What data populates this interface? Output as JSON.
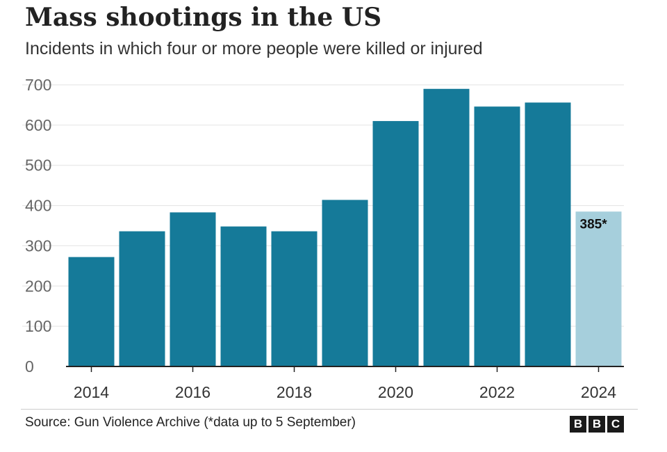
{
  "chart_data": {
    "type": "bar",
    "title": "Mass shootings in the US",
    "subtitle": "Incidents in which four or more people were killed or injured",
    "categories": [
      "2014",
      "2015",
      "2016",
      "2017",
      "2018",
      "2019",
      "2020",
      "2021",
      "2022",
      "2023",
      "2024"
    ],
    "values": [
      272,
      336,
      383,
      348,
      336,
      414,
      610,
      690,
      646,
      656,
      385
    ],
    "highlighted": [
      false,
      false,
      false,
      false,
      false,
      false,
      false,
      false,
      false,
      false,
      true
    ],
    "data_labels": [
      {
        "index": 10,
        "text": "385*"
      }
    ],
    "x_tick_labels": [
      "2014",
      "2016",
      "2018",
      "2020",
      "2022",
      "2024"
    ],
    "y_ticks": [
      0,
      100,
      200,
      300,
      400,
      500,
      600,
      700
    ],
    "ylim": [
      0,
      700
    ],
    "xlabel": "",
    "ylabel": "",
    "grid": true,
    "colors": {
      "bar": "#157a99",
      "highlight": "#a6cfdc",
      "grid": "#e3e3e3",
      "tick_text": "#666666",
      "axis": "#222222"
    }
  },
  "footer": {
    "source": "Source: Gun Violence Archive (*data up to 5 September)",
    "logo_letters": [
      "B",
      "B",
      "C"
    ]
  }
}
